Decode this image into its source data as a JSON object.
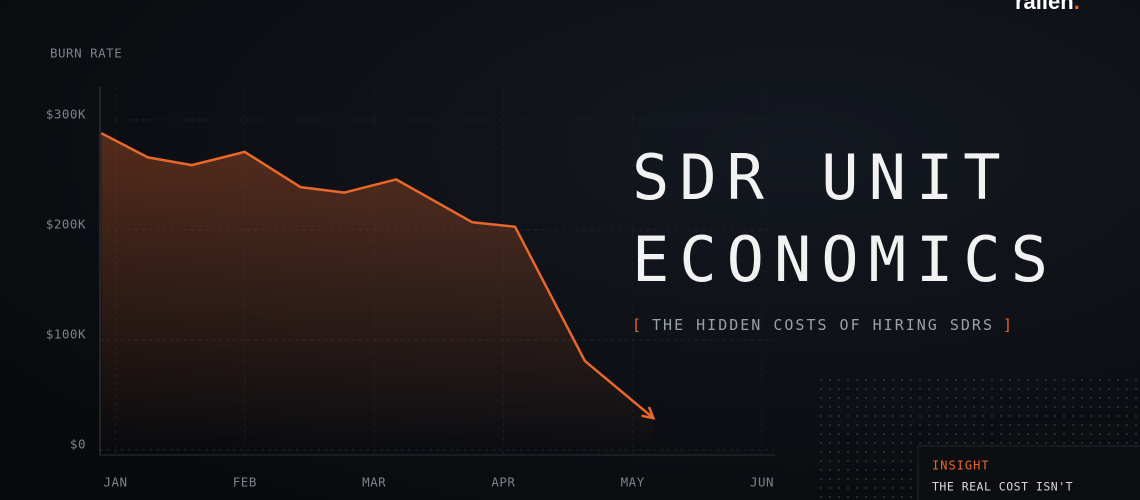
{
  "logo": "rallen",
  "logo_dot": ".",
  "chart_data": {
    "type": "area",
    "title": [
      "SDR UNIT",
      "ECONOMICS"
    ],
    "subtitle_open": "[",
    "subtitle": "THE HIDDEN COSTS OF HIRING SDRS",
    "subtitle_close": "]",
    "ylabel": "BURN RATE",
    "x": [
      -0.11,
      0.25,
      0.59,
      1.0,
      1.43,
      1.77,
      2.17,
      2.76,
      3.09,
      3.63,
      4.16
    ],
    "values": [
      288000,
      266000,
      259000,
      271000,
      239000,
      234000,
      246000,
      207000,
      203000,
      81000,
      29000
    ],
    "color": "#e8672a",
    "xlim": [
      -0.12,
      5.0
    ],
    "xticks": [
      {
        "value": 0,
        "label": "JAN"
      },
      {
        "value": 1,
        "label": "FEB"
      },
      {
        "value": 2,
        "label": "MAR"
      },
      {
        "value": 3,
        "label": "APR"
      },
      {
        "value": 4,
        "label": "MAY"
      },
      {
        "value": 5,
        "label": "JUN"
      }
    ],
    "ylim": [
      0,
      330000
    ],
    "yticks": [
      {
        "value": 0,
        "label": "$0"
      },
      {
        "value": 100000,
        "label": "$100K"
      },
      {
        "value": 200000,
        "label": "$200K"
      },
      {
        "value": 300000,
        "label": "$300K"
      }
    ],
    "grid": true
  },
  "insight": {
    "label": "INSIGHT",
    "text": "THE REAL COST ISN'T"
  }
}
